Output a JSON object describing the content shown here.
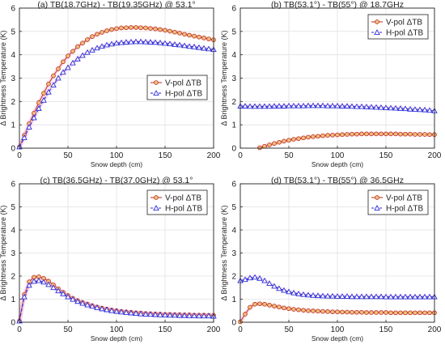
{
  "chart_data": [
    {
      "type": "line",
      "title": "(a) TB(18.7GHz) - TB(19.35GHz) @ 53.1°",
      "xlabel": "Snow depth (cm)",
      "ylabel": "Δ Brightness Temperature (K)",
      "xlim": [
        0,
        200
      ],
      "ylim": [
        0,
        6
      ],
      "xticks": [
        "0",
        "50",
        "100",
        "150",
        "200"
      ],
      "yticks": [
        "0",
        "1",
        "2",
        "3",
        "4",
        "5",
        "6"
      ],
      "grid": true,
      "legend_position": "center-right",
      "x": [
        0,
        5,
        10,
        15,
        20,
        25,
        30,
        35,
        40,
        45,
        50,
        55,
        60,
        65,
        70,
        75,
        80,
        85,
        90,
        95,
        100,
        105,
        110,
        115,
        120,
        125,
        130,
        135,
        140,
        145,
        150,
        155,
        160,
        165,
        170,
        175,
        180,
        185,
        190,
        195,
        200
      ],
      "series": [
        {
          "name": "V-pol ΔTB",
          "marker": "circle",
          "color": "#c0392b",
          "values": [
            0.05,
            0.55,
            1.05,
            1.5,
            1.95,
            2.35,
            2.75,
            3.1,
            3.4,
            3.7,
            3.95,
            4.15,
            4.35,
            4.5,
            4.65,
            4.78,
            4.88,
            4.96,
            5.03,
            5.08,
            5.12,
            5.15,
            5.16,
            5.17,
            5.17,
            5.16,
            5.15,
            5.13,
            5.11,
            5.08,
            5.05,
            5.01,
            4.97,
            4.93,
            4.88,
            4.84,
            4.8,
            4.76,
            4.72,
            4.68,
            4.64
          ]
        },
        {
          "name": "H-pol ΔTB",
          "marker": "triangle",
          "color": "#2c2cd8",
          "values": [
            0.05,
            0.45,
            0.9,
            1.3,
            1.7,
            2.05,
            2.4,
            2.7,
            3.0,
            3.25,
            3.45,
            3.65,
            3.82,
            3.97,
            4.1,
            4.2,
            4.29,
            4.36,
            4.42,
            4.46,
            4.5,
            4.52,
            4.54,
            4.55,
            4.56,
            4.56,
            4.55,
            4.54,
            4.53,
            4.51,
            4.49,
            4.47,
            4.44,
            4.42,
            4.39,
            4.36,
            4.34,
            4.31,
            4.28,
            4.25,
            4.22
          ]
        }
      ]
    },
    {
      "type": "line",
      "title": "(b) TB(53.1°) - TB(55°) @ 18.7GHz",
      "xlabel": "Snow depth (cm)",
      "ylabel": "Δ Brightness Temperature (K)",
      "xlim": [
        0,
        200
      ],
      "ylim": [
        0,
        6
      ],
      "xticks": [
        "0",
        "50",
        "100",
        "150",
        "200"
      ],
      "yticks": [
        "0",
        "1",
        "2",
        "3",
        "4",
        "5",
        "6"
      ],
      "grid": true,
      "legend_position": "top-right",
      "x": [
        0,
        5,
        10,
        15,
        20,
        25,
        30,
        35,
        40,
        45,
        50,
        55,
        60,
        65,
        70,
        75,
        80,
        85,
        90,
        95,
        100,
        105,
        110,
        115,
        120,
        125,
        130,
        135,
        140,
        145,
        150,
        155,
        160,
        165,
        170,
        175,
        180,
        185,
        190,
        195,
        200
      ],
      "series": [
        {
          "name": "V-pol ΔTB",
          "marker": "circle",
          "color": "#c0392b",
          "values": [
            null,
            null,
            null,
            null,
            0.02,
            0.08,
            0.14,
            0.2,
            0.25,
            0.3,
            0.34,
            0.38,
            0.41,
            0.44,
            0.47,
            0.49,
            0.51,
            0.53,
            0.55,
            0.56,
            0.57,
            0.58,
            0.59,
            0.6,
            0.6,
            0.61,
            0.61,
            0.61,
            0.61,
            0.61,
            0.61,
            0.61,
            0.61,
            0.6,
            0.6,
            0.6,
            0.59,
            0.59,
            0.59,
            0.58,
            0.58
          ]
        },
        {
          "name": "H-pol ΔTB",
          "marker": "triangle",
          "color": "#2c2cd8",
          "values": [
            1.8,
            1.8,
            1.79,
            1.79,
            1.79,
            1.79,
            1.79,
            1.8,
            1.8,
            1.8,
            1.81,
            1.81,
            1.81,
            1.81,
            1.82,
            1.82,
            1.82,
            1.82,
            1.81,
            1.81,
            1.81,
            1.8,
            1.8,
            1.79,
            1.78,
            1.78,
            1.77,
            1.76,
            1.75,
            1.74,
            1.73,
            1.72,
            1.71,
            1.7,
            1.69,
            1.67,
            1.66,
            1.65,
            1.64,
            1.62,
            1.6
          ]
        }
      ]
    },
    {
      "type": "line",
      "title": "(c) TB(36.5GHz) - TB(37.0GHz) @ 53.1°",
      "xlabel": "Snow depth (cm)",
      "ylabel": "Δ Brightness Temperature (K)",
      "xlim": [
        0,
        200
      ],
      "ylim": [
        0,
        6
      ],
      "xticks": [
        "0",
        "50",
        "100",
        "150",
        "200"
      ],
      "yticks": [
        "0",
        "1",
        "2",
        "3",
        "4",
        "5",
        "6"
      ],
      "grid": true,
      "legend_position": "top-right",
      "x": [
        0,
        5,
        10,
        15,
        20,
        25,
        30,
        35,
        40,
        45,
        50,
        55,
        60,
        65,
        70,
        75,
        80,
        85,
        90,
        95,
        100,
        105,
        110,
        115,
        120,
        125,
        130,
        135,
        140,
        145,
        150,
        155,
        160,
        165,
        170,
        175,
        180,
        185,
        190,
        195,
        200
      ],
      "series": [
        {
          "name": "V-pol ΔTB",
          "marker": "circle",
          "color": "#c0392b",
          "values": [
            0.05,
            1.2,
            1.75,
            1.95,
            1.97,
            1.9,
            1.78,
            1.62,
            1.45,
            1.3,
            1.16,
            1.04,
            0.94,
            0.86,
            0.79,
            0.72,
            0.66,
            0.61,
            0.57,
            0.53,
            0.5,
            0.47,
            0.45,
            0.43,
            0.41,
            0.4,
            0.38,
            0.37,
            0.36,
            0.35,
            0.34,
            0.34,
            0.33,
            0.33,
            0.32,
            0.32,
            0.31,
            0.31,
            0.31,
            0.3,
            0.3
          ]
        },
        {
          "name": "H-pol ΔTB",
          "marker": "triangle",
          "color": "#2c2cd8",
          "values": [
            0.05,
            1.1,
            1.6,
            1.77,
            1.8,
            1.74,
            1.63,
            1.5,
            1.36,
            1.23,
            1.1,
            0.99,
            0.9,
            0.82,
            0.75,
            0.69,
            0.63,
            0.58,
            0.54,
            0.5,
            0.47,
            0.44,
            0.42,
            0.4,
            0.38,
            0.36,
            0.35,
            0.34,
            0.33,
            0.32,
            0.31,
            0.3,
            0.3,
            0.29,
            0.29,
            0.28,
            0.28,
            0.27,
            0.27,
            0.27,
            0.26
          ]
        }
      ]
    },
    {
      "type": "line",
      "title": "(d) TB(53.1°) - TB(55°) @ 36.5GHz",
      "xlabel": "Snow depth (cm)",
      "ylabel": "Δ Brightness Temperature (K)",
      "xlim": [
        0,
        200
      ],
      "ylim": [
        0,
        6
      ],
      "xticks": [
        "0",
        "50",
        "100",
        "150",
        "200"
      ],
      "yticks": [
        "0",
        "1",
        "2",
        "3",
        "4",
        "5",
        "6"
      ],
      "grid": true,
      "legend_position": "top-right",
      "x": [
        0,
        5,
        10,
        15,
        20,
        25,
        30,
        35,
        40,
        45,
        50,
        55,
        60,
        65,
        70,
        75,
        80,
        85,
        90,
        95,
        100,
        105,
        110,
        115,
        120,
        125,
        130,
        135,
        140,
        145,
        150,
        155,
        160,
        165,
        170,
        175,
        180,
        185,
        190,
        195,
        200
      ],
      "series": [
        {
          "name": "V-pol ΔTB",
          "marker": "circle",
          "color": "#c0392b",
          "values": [
            0.02,
            0.35,
            0.65,
            0.78,
            0.8,
            0.78,
            0.74,
            0.7,
            0.66,
            0.62,
            0.59,
            0.56,
            0.54,
            0.52,
            0.5,
            0.49,
            0.48,
            0.47,
            0.46,
            0.45,
            0.45,
            0.44,
            0.44,
            0.43,
            0.43,
            0.43,
            0.42,
            0.42,
            0.42,
            0.42,
            0.42,
            0.41,
            0.41,
            0.41,
            0.41,
            0.41,
            0.41,
            0.41,
            0.41,
            0.41,
            0.41
          ]
        },
        {
          "name": "H-pol ΔTB",
          "marker": "triangle",
          "color": "#2c2cd8",
          "values": [
            1.8,
            1.85,
            1.92,
            1.95,
            1.9,
            1.8,
            1.68,
            1.56,
            1.46,
            1.38,
            1.32,
            1.27,
            1.23,
            1.2,
            1.18,
            1.16,
            1.15,
            1.14,
            1.13,
            1.13,
            1.12,
            1.12,
            1.12,
            1.11,
            1.11,
            1.11,
            1.11,
            1.11,
            1.11,
            1.11,
            1.1,
            1.1,
            1.1,
            1.1,
            1.1,
            1.1,
            1.1,
            1.1,
            1.1,
            1.1,
            1.1
          ]
        }
      ]
    }
  ]
}
